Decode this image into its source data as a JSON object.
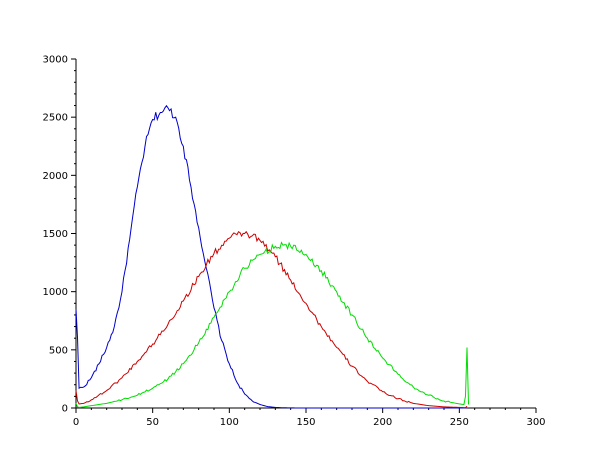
{
  "chart_data": {
    "type": "line",
    "title": "",
    "xlabel": "",
    "ylabel": "",
    "xlim": [
      0,
      300
    ],
    "ylim": [
      0,
      3000
    ],
    "x_ticks": [
      0,
      50,
      100,
      150,
      200,
      250,
      300
    ],
    "x_tick_labels": [
      "0",
      "50",
      "100",
      "150",
      "200",
      "250",
      "300"
    ],
    "y_ticks": [
      0,
      500,
      1000,
      1500,
      2000,
      2500,
      3000
    ],
    "y_tick_labels": [
      "0",
      "500",
      "1000",
      "1500",
      "2000",
      "2500",
      "3000"
    ],
    "grid": false,
    "legend": "none",
    "series": [
      {
        "color": "#0000cc",
        "x": [
          0,
          1,
          2,
          5,
          10,
          15,
          20,
          25,
          30,
          35,
          40,
          45,
          50,
          55,
          60,
          65,
          70,
          75,
          80,
          85,
          90,
          95,
          100,
          105,
          110,
          115,
          120,
          125,
          130,
          135,
          140,
          145,
          150,
          200,
          255
        ],
        "y": [
          850,
          600,
          170,
          180,
          260,
          380,
          520,
          700,
          1000,
          1450,
          1900,
          2250,
          2480,
          2540,
          2580,
          2500,
          2250,
          1900,
          1550,
          1200,
          860,
          580,
          380,
          220,
          120,
          60,
          30,
          12,
          5,
          2,
          1,
          0,
          0,
          0,
          0
        ]
      },
      {
        "color": "#cc0000",
        "x": [
          0,
          1,
          2,
          5,
          10,
          20,
          30,
          40,
          50,
          60,
          70,
          80,
          90,
          100,
          105,
          110,
          115,
          120,
          130,
          140,
          150,
          160,
          170,
          180,
          190,
          200,
          210,
          220,
          230,
          240,
          250,
          254,
          255
        ],
        "y": [
          150,
          60,
          35,
          40,
          70,
          150,
          260,
          400,
          550,
          720,
          920,
          1130,
          1330,
          1460,
          1490,
          1500,
          1480,
          1440,
          1300,
          1100,
          900,
          700,
          520,
          360,
          230,
          140,
          80,
          40,
          20,
          10,
          5,
          3,
          15
        ]
      },
      {
        "color": "#00dd00",
        "x": [
          0,
          1,
          2,
          5,
          10,
          20,
          30,
          40,
          50,
          60,
          70,
          80,
          90,
          100,
          110,
          120,
          130,
          135,
          140,
          150,
          160,
          170,
          180,
          190,
          200,
          210,
          220,
          230,
          240,
          250,
          253,
          254,
          255,
          256
        ],
        "y": [
          40,
          10,
          5,
          10,
          20,
          40,
          70,
          110,
          170,
          250,
          380,
          560,
          780,
          1000,
          1200,
          1320,
          1390,
          1400,
          1390,
          1320,
          1180,
          1000,
          800,
          600,
          430,
          290,
          180,
          110,
          60,
          35,
          30,
          100,
          520,
          30
        ]
      }
    ]
  }
}
